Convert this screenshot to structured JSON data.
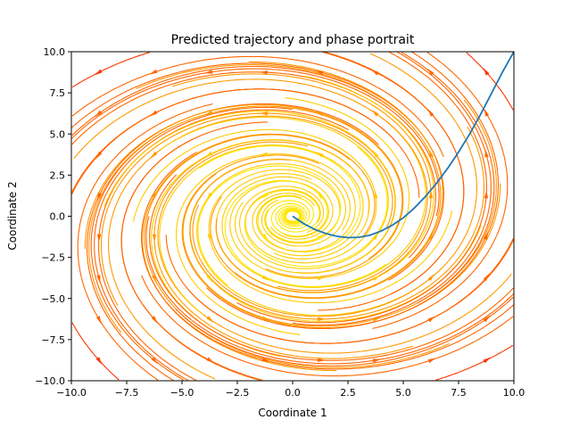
{
  "chart_data": {
    "type": "line",
    "title": "Predicted trajectory and phase portrait",
    "xlabel": "Coordinate 1",
    "ylabel": "Coordinate 2",
    "xlim": [
      -10,
      10
    ],
    "ylim": [
      -10,
      10
    ],
    "xticks": [
      "−10.0",
      "−7.5",
      "−5.0",
      "−2.5",
      "0.0",
      "2.5",
      "5.0",
      "7.5",
      "10.0"
    ],
    "yticks": [
      "−10.0",
      "−7.5",
      "−5.0",
      "−2.5",
      "0.0",
      "2.5",
      "5.0",
      "7.5",
      "10.0"
    ],
    "grid": false,
    "legend": "none",
    "trajectory": {
      "color": "#1f77b4",
      "x": [
        0,
        0.5,
        1,
        1.5,
        2,
        2.5,
        3,
        3.5,
        4,
        4.5,
        5,
        5.5,
        6,
        6.5,
        7,
        7.5,
        8,
        8.5,
        9,
        9.5,
        10
      ],
      "y": [
        0,
        -0.45,
        -0.8,
        -1.05,
        -1.22,
        -1.3,
        -1.28,
        -1.15,
        -0.9,
        -0.55,
        -0.1,
        0.5,
        1.2,
        2.0,
        2.9,
        3.9,
        5.0,
        6.2,
        7.5,
        8.8,
        10.0
      ]
    },
    "streamplot": {
      "colormap": "autumn",
      "colors": [
        "#ff3300",
        "#ff6600",
        "#ff9900",
        "#ffcc00",
        "#ffe600"
      ]
    }
  }
}
